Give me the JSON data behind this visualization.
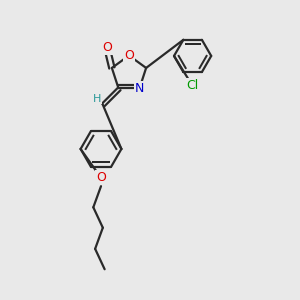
{
  "bg_color": "#e9e9e9",
  "bond_color": "#2a2a2a",
  "line_width": 1.6,
  "atom_colors": {
    "O": "#dd0000",
    "N": "#0000cc",
    "Cl": "#009900",
    "H": "#2a9999",
    "C": "#2a2a2a"
  },
  "font_size": 9
}
